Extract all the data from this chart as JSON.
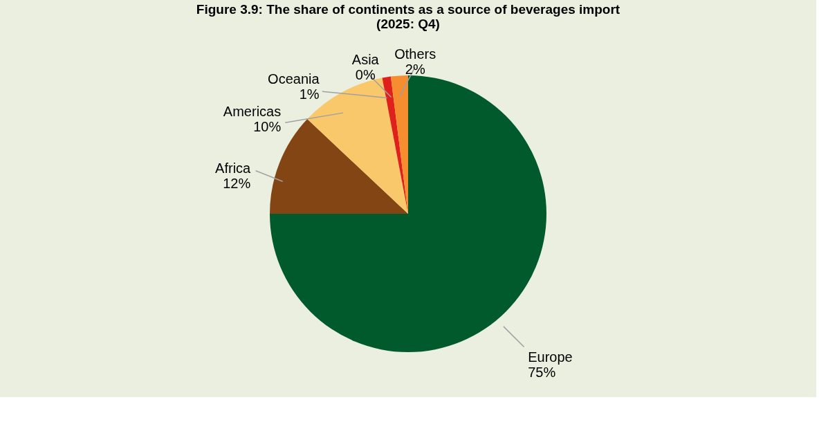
{
  "chart_data": {
    "type": "pie",
    "title": [
      "Figure 3.9: The share of continents as a source of beverages import",
      "(2025: Q4)"
    ],
    "categories": [
      "Europe",
      "Africa",
      "Americas",
      "Oceania",
      "Asia",
      "Others"
    ],
    "values": [
      75,
      12,
      10,
      1,
      0,
      2
    ],
    "value_labels": [
      "75%",
      "12%",
      "10%",
      "1%",
      "0%",
      "2%"
    ],
    "colors": [
      "#005a2b",
      "#844514",
      "#f9c86a",
      "#e0201b",
      "#c8a060",
      "#f68d2e"
    ],
    "legend": false
  }
}
